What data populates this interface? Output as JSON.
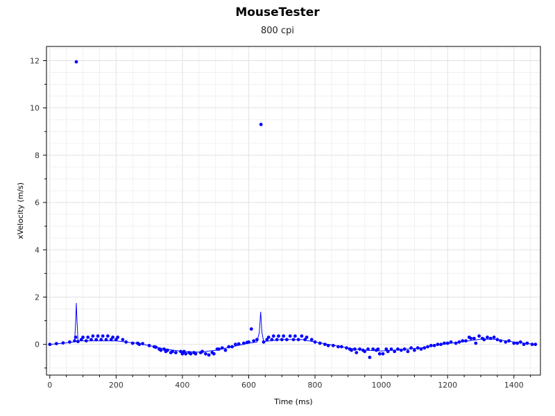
{
  "chart_data": {
    "type": "scatter",
    "title": "MouseTester",
    "subtitle": "800 cpi",
    "xlabel": "Time (ms)",
    "ylabel": "xVelocity (m/s)",
    "xlim": [
      -10,
      1480
    ],
    "ylim": [
      -1.3,
      12.6
    ],
    "xticks": [
      0,
      200,
      400,
      600,
      800,
      1000,
      1200,
      1400
    ],
    "yticks": [
      0,
      2,
      4,
      6,
      8,
      10,
      12
    ],
    "grid": true,
    "point_color": "#0000ff",
    "line_color": "#0000ff",
    "series": [
      {
        "points": [
          [
            0,
            0
          ],
          [
            20,
            0.03
          ],
          [
            40,
            0.06
          ],
          [
            60,
            0.1
          ],
          [
            75,
            0.15
          ],
          [
            78,
            0.3
          ],
          [
            80,
            11.95
          ],
          [
            85,
            0.12
          ],
          [
            95,
            0.2
          ],
          [
            100,
            0.3
          ],
          [
            110,
            0.15
          ],
          [
            115,
            0.3
          ],
          [
            125,
            0.2
          ],
          [
            130,
            0.35
          ],
          [
            140,
            0.2
          ],
          [
            145,
            0.35
          ],
          [
            155,
            0.2
          ],
          [
            160,
            0.35
          ],
          [
            170,
            0.2
          ],
          [
            175,
            0.35
          ],
          [
            185,
            0.2
          ],
          [
            190,
            0.3
          ],
          [
            200,
            0.2
          ],
          [
            205,
            0.3
          ],
          [
            220,
            0.2
          ],
          [
            230,
            0.1
          ],
          [
            250,
            0.05
          ],
          [
            265,
            0.05
          ],
          [
            270,
            0.0
          ],
          [
            280,
            0.03
          ],
          [
            300,
            -0.05
          ],
          [
            315,
            -0.1
          ],
          [
            320,
            -0.12
          ],
          [
            330,
            -0.2
          ],
          [
            335,
            -0.25
          ],
          [
            345,
            -0.2
          ],
          [
            350,
            -0.3
          ],
          [
            355,
            -0.25
          ],
          [
            365,
            -0.35
          ],
          [
            370,
            -0.3
          ],
          [
            380,
            -0.35
          ],
          [
            395,
            -0.3
          ],
          [
            400,
            -0.4
          ],
          [
            405,
            -0.3
          ],
          [
            410,
            -0.4
          ],
          [
            420,
            -0.35
          ],
          [
            425,
            -0.4
          ],
          [
            435,
            -0.35
          ],
          [
            440,
            -0.4
          ],
          [
            455,
            -0.35
          ],
          [
            460,
            -0.3
          ],
          [
            470,
            -0.4
          ],
          [
            480,
            -0.45
          ],
          [
            490,
            -0.35
          ],
          [
            495,
            -0.4
          ],
          [
            505,
            -0.2
          ],
          [
            510,
            -0.2
          ],
          [
            520,
            -0.15
          ],
          [
            530,
            -0.25
          ],
          [
            540,
            -0.1
          ],
          [
            550,
            -0.1
          ],
          [
            560,
            0.0
          ],
          [
            570,
            0.02
          ],
          [
            585,
            0.05
          ],
          [
            595,
            0.08
          ],
          [
            600,
            0.1
          ],
          [
            608,
            0.65
          ],
          [
            615,
            0.15
          ],
          [
            625,
            0.2
          ],
          [
            637,
            9.3
          ],
          [
            645,
            0.1
          ],
          [
            655,
            0.2
          ],
          [
            660,
            0.3
          ],
          [
            670,
            0.2
          ],
          [
            675,
            0.35
          ],
          [
            685,
            0.2
          ],
          [
            690,
            0.35
          ],
          [
            700,
            0.2
          ],
          [
            705,
            0.35
          ],
          [
            715,
            0.2
          ],
          [
            725,
            0.35
          ],
          [
            735,
            0.2
          ],
          [
            740,
            0.35
          ],
          [
            750,
            0.2
          ],
          [
            760,
            0.35
          ],
          [
            770,
            0.2
          ],
          [
            775,
            0.3
          ],
          [
            790,
            0.2
          ],
          [
            800,
            0.1
          ],
          [
            815,
            0.05
          ],
          [
            830,
            0.0
          ],
          [
            840,
            -0.05
          ],
          [
            855,
            -0.05
          ],
          [
            870,
            -0.1
          ],
          [
            880,
            -0.1
          ],
          [
            895,
            -0.15
          ],
          [
            905,
            -0.2
          ],
          [
            910,
            -0.25
          ],
          [
            920,
            -0.2
          ],
          [
            925,
            -0.35
          ],
          [
            935,
            -0.2
          ],
          [
            945,
            -0.25
          ],
          [
            950,
            -0.3
          ],
          [
            960,
            -0.2
          ],
          [
            965,
            -0.55
          ],
          [
            975,
            -0.2
          ],
          [
            985,
            -0.25
          ],
          [
            990,
            -0.2
          ],
          [
            995,
            -0.4
          ],
          [
            1005,
            -0.4
          ],
          [
            1015,
            -0.2
          ],
          [
            1020,
            -0.3
          ],
          [
            1030,
            -0.2
          ],
          [
            1040,
            -0.3
          ],
          [
            1050,
            -0.2
          ],
          [
            1060,
            -0.25
          ],
          [
            1070,
            -0.2
          ],
          [
            1080,
            -0.3
          ],
          [
            1090,
            -0.15
          ],
          [
            1100,
            -0.25
          ],
          [
            1110,
            -0.15
          ],
          [
            1120,
            -0.2
          ],
          [
            1130,
            -0.15
          ],
          [
            1140,
            -0.1
          ],
          [
            1150,
            -0.05
          ],
          [
            1160,
            -0.05
          ],
          [
            1170,
            0.0
          ],
          [
            1180,
            0.0
          ],
          [
            1190,
            0.05
          ],
          [
            1200,
            0.05
          ],
          [
            1210,
            0.1
          ],
          [
            1225,
            0.05
          ],
          [
            1235,
            0.1
          ],
          [
            1245,
            0.15
          ],
          [
            1255,
            0.15
          ],
          [
            1265,
            0.3
          ],
          [
            1270,
            0.25
          ],
          [
            1280,
            0.25
          ],
          [
            1285,
            0.05
          ],
          [
            1295,
            0.35
          ],
          [
            1305,
            0.25
          ],
          [
            1310,
            0.2
          ],
          [
            1320,
            0.3
          ],
          [
            1330,
            0.25
          ],
          [
            1340,
            0.3
          ],
          [
            1350,
            0.2
          ],
          [
            1360,
            0.15
          ],
          [
            1375,
            0.1
          ],
          [
            1385,
            0.15
          ],
          [
            1400,
            0.05
          ],
          [
            1410,
            0.05
          ],
          [
            1420,
            0.1
          ],
          [
            1430,
            0.0
          ],
          [
            1440,
            0.05
          ],
          [
            1455,
            0.0
          ],
          [
            1465,
            0.0
          ]
        ],
        "line": [
          [
            0,
            0
          ],
          [
            40,
            0.05
          ],
          [
            70,
            0.1
          ],
          [
            75,
            0.12
          ],
          [
            78,
            1.0
          ],
          [
            80,
            1.75
          ],
          [
            82,
            1.0
          ],
          [
            85,
            0.15
          ],
          [
            120,
            0.15
          ],
          [
            200,
            0.15
          ],
          [
            260,
            0.05
          ],
          [
            300,
            -0.05
          ],
          [
            350,
            -0.2
          ],
          [
            400,
            -0.3
          ],
          [
            450,
            -0.33
          ],
          [
            500,
            -0.25
          ],
          [
            550,
            -0.1
          ],
          [
            600,
            0.05
          ],
          [
            625,
            0.1
          ],
          [
            632,
            0.5
          ],
          [
            636,
            1.38
          ],
          [
            640,
            0.5
          ],
          [
            645,
            0.12
          ],
          [
            700,
            0.2
          ],
          [
            760,
            0.2
          ],
          [
            800,
            0.1
          ],
          [
            860,
            -0.05
          ],
          [
            920,
            -0.2
          ],
          [
            960,
            -0.25
          ],
          [
            1000,
            -0.28
          ],
          [
            1060,
            -0.22
          ],
          [
            1120,
            -0.15
          ],
          [
            1180,
            0.0
          ],
          [
            1240,
            0.1
          ],
          [
            1300,
            0.22
          ],
          [
            1340,
            0.22
          ],
          [
            1400,
            0.1
          ],
          [
            1465,
            0.0
          ]
        ]
      }
    ]
  }
}
